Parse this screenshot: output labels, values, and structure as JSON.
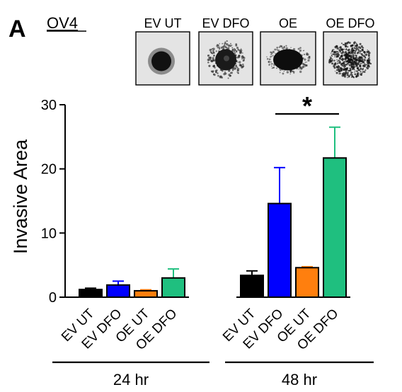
{
  "panel": {
    "letter": "A",
    "cell_line": "OV4"
  },
  "images": [
    {
      "label": "EV UT",
      "texture": "dense round spheroid"
    },
    {
      "label": "EV DFO",
      "texture": "spheroid with ragged halo"
    },
    {
      "label": "OE",
      "texture": "dense spheroid with short spikes"
    },
    {
      "label": "OE DFO",
      "texture": "diffuse scattered invasion"
    }
  ],
  "chart_data": {
    "type": "bar",
    "title": "",
    "xlabel": "",
    "ylabel": "Invasive Area",
    "ylim": [
      0,
      30
    ],
    "yticks": [
      "0",
      "10",
      "20",
      "30"
    ],
    "grid": false,
    "groups": [
      {
        "label": "24 hr",
        "bars": [
          {
            "category": "EV UT",
            "value": 1.2,
            "error": 0.2,
            "color": "#000000"
          },
          {
            "category": "EV DFO",
            "value": 1.9,
            "error": 0.6,
            "color": "#0000ff"
          },
          {
            "category": "OE UT",
            "value": 1.0,
            "error": 0.15,
            "color": "#ff7f0e"
          },
          {
            "category": "OE DFO",
            "value": 3.0,
            "error": 1.4,
            "color": "#1fbf7f"
          }
        ]
      },
      {
        "label": "48 hr",
        "bars": [
          {
            "category": "EV UT",
            "value": 3.4,
            "error": 0.7,
            "color": "#000000"
          },
          {
            "category": "EV DFO",
            "value": 14.6,
            "error": 5.6,
            "color": "#0000ff"
          },
          {
            "category": "OE UT",
            "value": 4.6,
            "error": 0.15,
            "color": "#ff7f0e"
          },
          {
            "category": "OE DFO",
            "value": 21.7,
            "error": 4.8,
            "color": "#1fbf7f"
          }
        ]
      }
    ],
    "annotations": [
      {
        "text": "*",
        "from": {
          "group": 1,
          "bar": 1
        },
        "to": {
          "group": 1,
          "bar": 3
        }
      }
    ]
  }
}
